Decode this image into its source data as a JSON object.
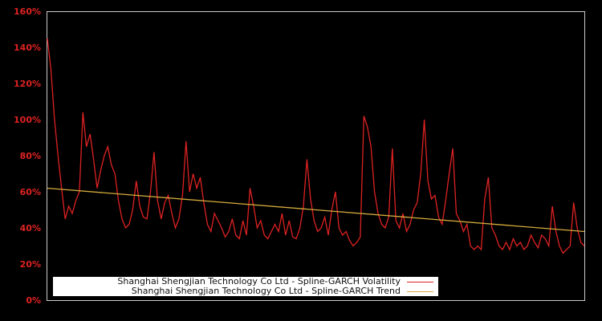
{
  "chart_data": {
    "type": "line",
    "title": "",
    "xlabel": "",
    "ylabel": "",
    "ylim": [
      0,
      160
    ],
    "y_ticks": [
      "0%",
      "20%",
      "40%",
      "60%",
      "80%",
      "100%",
      "120%",
      "140%",
      "160%"
    ],
    "grid": false,
    "legend_position": "lower-left",
    "background": "#000000",
    "axis_color": "#cccccc",
    "tick_color": "#dd2222",
    "series": [
      {
        "name": "Shanghai Shengjian Technology Co Ltd - Spline-GARCH Volatility",
        "color": "#dd2222",
        "values": [
          145,
          128,
          100,
          80,
          62,
          45,
          52,
          48,
          55,
          60,
          104,
          85,
          92,
          78,
          62,
          72,
          80,
          85,
          75,
          70,
          55,
          45,
          40,
          42,
          50,
          66,
          52,
          46,
          45,
          60,
          82,
          55,
          45,
          54,
          58,
          48,
          40,
          45,
          58,
          88,
          60,
          70,
          62,
          68,
          54,
          42,
          38,
          48,
          44,
          40,
          35,
          38,
          45,
          36,
          34,
          44,
          36,
          62,
          52,
          40,
          44,
          36,
          34,
          38,
          42,
          38,
          48,
          36,
          44,
          35,
          34,
          40,
          52,
          78,
          56,
          44,
          38,
          40,
          46,
          36,
          50,
          60,
          40,
          36,
          38,
          33,
          30,
          32,
          35,
          102,
          96,
          85,
          60,
          48,
          42,
          40,
          46,
          84,
          44,
          40,
          48,
          38,
          42,
          50,
          54,
          70,
          100,
          66,
          56,
          58,
          46,
          42,
          55,
          70,
          84,
          48,
          44,
          38,
          42,
          30,
          28,
          30,
          28,
          56,
          68,
          40,
          36,
          30,
          28,
          32,
          28,
          34,
          30,
          32,
          28,
          30,
          36,
          32,
          29,
          36,
          34,
          30,
          52,
          38,
          30,
          26,
          28,
          30,
          54,
          40,
          32,
          30
        ]
      },
      {
        "name": "Shanghai Shengjian Technology Co Ltd - Spline-GARCH Trend",
        "color": "#d4aa3c",
        "values": [
          62,
          38
        ]
      }
    ]
  },
  "legend": {
    "items": [
      {
        "label": "Shanghai Shengjian Technology Co Ltd - Spline-GARCH Volatility",
        "color": "#dd2222"
      },
      {
        "label": "Shanghai Shengjian Technology Co Ltd - Spline-GARCH Trend",
        "color": "#d4aa3c"
      }
    ]
  }
}
